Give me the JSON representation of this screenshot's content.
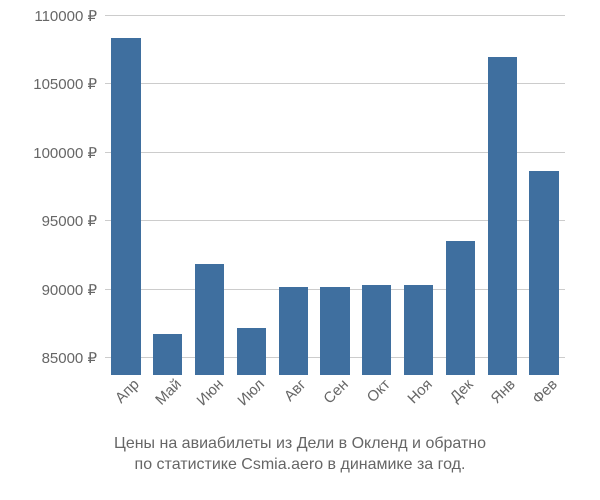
{
  "chart": {
    "type": "bar",
    "background_color": "#ffffff",
    "grid_color": "#cccccc",
    "label_color": "#666666",
    "label_fontsize": 15,
    "caption_fontsize": 16,
    "bar_color": "#3f6f9f",
    "bar_width": 0.7,
    "ylim": [
      83700,
      110000
    ],
    "yticks": [
      85000,
      90000,
      95000,
      100000,
      105000,
      110000
    ],
    "ytick_labels": [
      "85000 ₽",
      "90000 ₽",
      "95000 ₽",
      "100000 ₽",
      "105000 ₽",
      "110000 ₽"
    ],
    "categories": [
      "Апр",
      "Май",
      "Июн",
      "Июл",
      "Авг",
      "Сен",
      "Окт",
      "Ноя",
      "Дек",
      "Янв",
      "Фев"
    ],
    "values": [
      108300,
      86700,
      91800,
      87100,
      90100,
      90100,
      90300,
      90300,
      93500,
      106900,
      98600
    ],
    "caption_line1": "Цены на авиабилеты из Дели в Окленд и обратно",
    "caption_line2": "по статистике Csmia.aero в динамике за год."
  }
}
